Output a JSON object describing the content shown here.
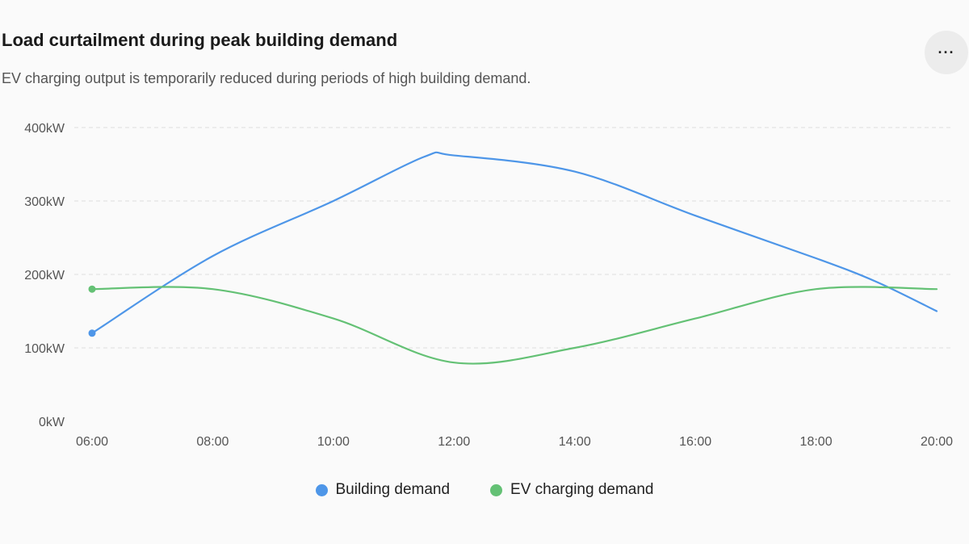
{
  "header": {
    "title": "Load curtailment during peak building demand",
    "subtitle": "EV charging output is temporarily reduced during periods of high building demand.",
    "more_label": "···"
  },
  "chart_data": {
    "type": "line",
    "x": [
      "06:00",
      "08:00",
      "10:00",
      "12:00",
      "14:00",
      "16:00",
      "18:00",
      "20:00"
    ],
    "x_hours": [
      6,
      7,
      8,
      10,
      11,
      12,
      13,
      14,
      16,
      18,
      19,
      20
    ],
    "series": [
      {
        "name": "Building demand",
        "color": "#4e96e8",
        "points": [
          [
            6,
            120
          ],
          [
            8,
            225
          ],
          [
            10,
            300
          ],
          [
            11.5,
            360
          ],
          [
            12,
            362
          ],
          [
            14,
            340
          ],
          [
            16,
            280
          ],
          [
            18,
            222
          ],
          [
            19,
            190
          ],
          [
            20,
            150
          ]
        ]
      },
      {
        "name": "EV charging demand",
        "color": "#64c175",
        "points": [
          [
            6,
            180
          ],
          [
            8,
            180
          ],
          [
            10,
            140
          ],
          [
            12,
            80
          ],
          [
            14,
            100
          ],
          [
            16,
            140
          ],
          [
            18,
            180
          ],
          [
            20,
            180
          ]
        ]
      }
    ],
    "ylim": [
      0,
      400
    ],
    "yticks": [
      "0kW",
      "100kW",
      "200kW",
      "300kW",
      "400kW"
    ],
    "ytick_values": [
      0,
      100,
      200,
      300,
      400
    ],
    "xlim": [
      6,
      20
    ],
    "grid": true,
    "legend_position": "bottom-center"
  }
}
